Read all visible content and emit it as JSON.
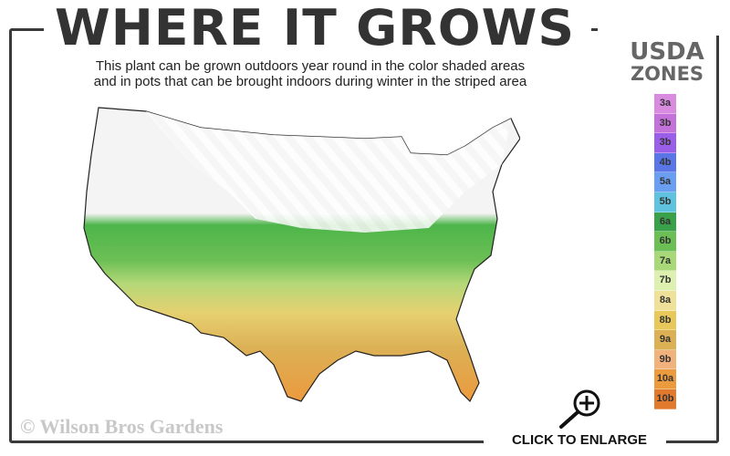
{
  "title": "WHERE IT GROWS",
  "subtitle_line1": "This plant can be grown outdoors year round in the color shaded areas",
  "subtitle_line2": "and in pots that can be brought indoors during winter in the striped area",
  "legend": {
    "title_line1": "USDA",
    "title_line2": "ZONES",
    "zones": [
      {
        "label": "3a",
        "color": "#d98be0"
      },
      {
        "label": "3b",
        "color": "#c272d8"
      },
      {
        "label": "3b",
        "color": "#9a5ee8"
      },
      {
        "label": "4b",
        "color": "#5a76e6"
      },
      {
        "label": "5a",
        "color": "#6a9ef0"
      },
      {
        "label": "5b",
        "color": "#5fc3e0"
      },
      {
        "label": "6a",
        "color": "#3aa04a"
      },
      {
        "label": "6b",
        "color": "#6cbf55"
      },
      {
        "label": "7a",
        "color": "#a8d878"
      },
      {
        "label": "7b",
        "color": "#def0b0"
      },
      {
        "label": "8a",
        "color": "#efe09a"
      },
      {
        "label": "8b",
        "color": "#e8c85a"
      },
      {
        "label": "9a",
        "color": "#dcb055"
      },
      {
        "label": "9b",
        "color": "#f2b27e"
      },
      {
        "label": "10a",
        "color": "#ec9a3e"
      },
      {
        "label": "10b",
        "color": "#e27a2e"
      }
    ]
  },
  "copyright": "© Wilson Bros Gardens",
  "enlarge": {
    "label": "CLICK TO ENLARGE",
    "icon": "zoom-in-icon"
  }
}
